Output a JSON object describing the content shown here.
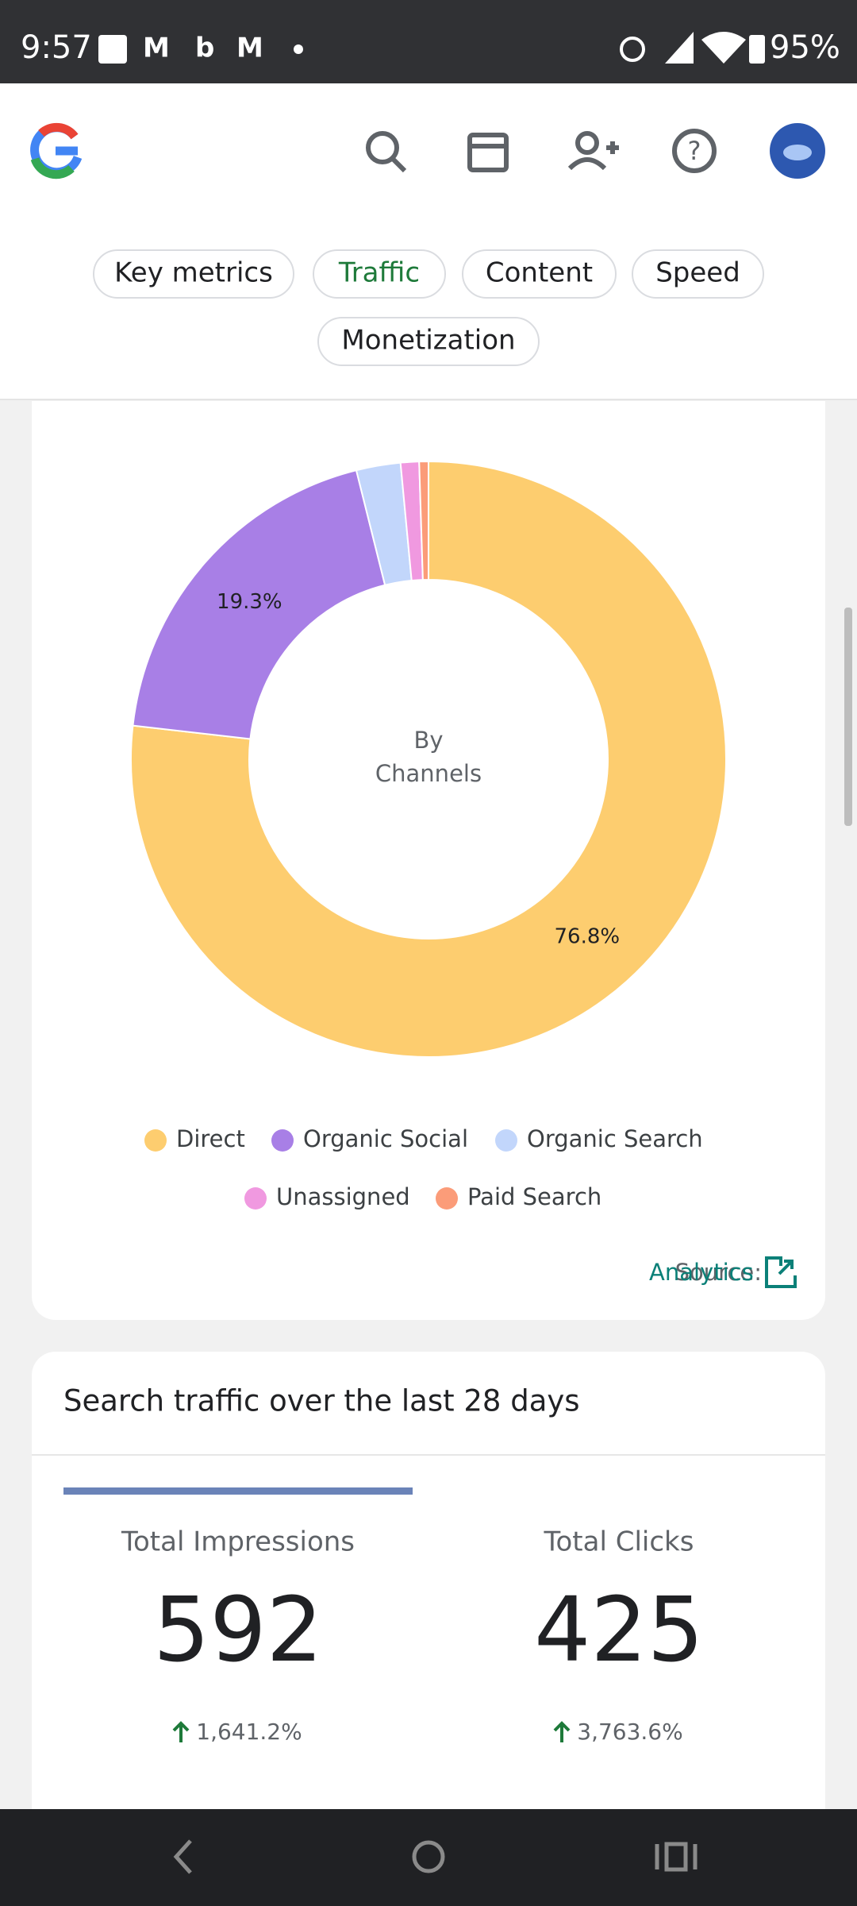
{
  "status_bar": {
    "time": "9:57",
    "battery": "95%"
  },
  "tabs": {
    "items": [
      "Key metrics",
      "Traffic",
      "Content",
      "Speed",
      "Monetization"
    ],
    "selected": 1
  },
  "chart_data": {
    "type": "pie",
    "center_label": [
      "By",
      "Channels"
    ],
    "categories": [
      "Direct",
      "Organic Social",
      "Organic Search",
      "Unassigned",
      "Paid Search"
    ],
    "values": [
      76.8,
      19.3,
      2.4,
      1.0,
      0.5
    ],
    "value_labels": [
      "76.8%",
      "19.3%",
      null,
      null,
      null
    ],
    "colors": [
      "#fdcd6f",
      "#a87fe6",
      "#c2d6fb",
      "#f099e0",
      "#fb9c79"
    ]
  },
  "source": {
    "label": "Source:",
    "link": "Analytics"
  },
  "search_traffic": {
    "title": "Search traffic over the last 28 days",
    "stats": [
      {
        "label": "Total Impressions",
        "value": 592,
        "change": "1,641.2%"
      },
      {
        "label": "Total Clicks",
        "value": 425,
        "change": "3,763.6%"
      }
    ]
  }
}
